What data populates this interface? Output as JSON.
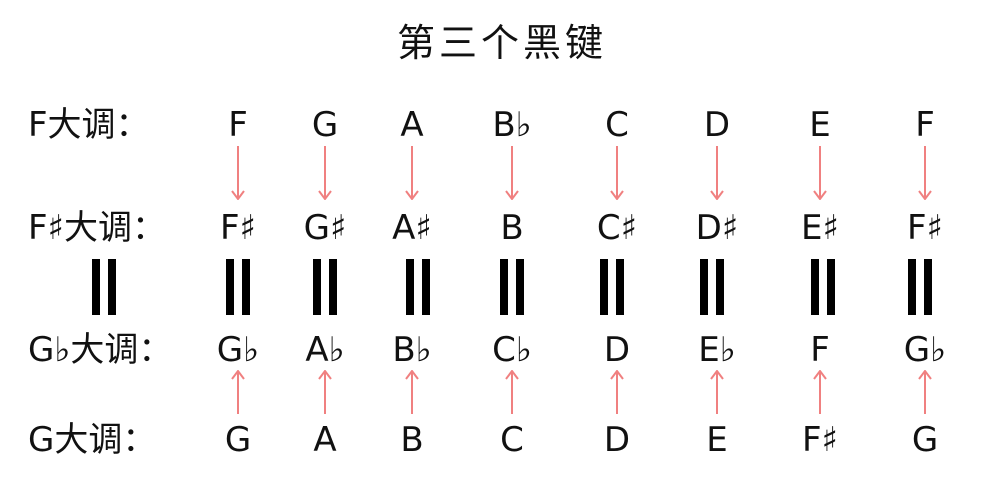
{
  "title": "第三个黑键",
  "rows": [
    {
      "label": "F大调：",
      "notes": [
        "F",
        "G",
        "A",
        "B♭",
        "C",
        "D",
        "E",
        "F"
      ]
    },
    {
      "label": "F♯大调：",
      "notes": [
        "F♯",
        "G♯",
        "A♯",
        "B",
        "C♯",
        "D♯",
        "E♯",
        "F♯"
      ]
    },
    {
      "label": "G♭大调：",
      "notes": [
        "G♭",
        "A♭",
        "B♭",
        "C♭",
        "D",
        "E♭",
        "F",
        "G♭"
      ]
    },
    {
      "label": "G大调：",
      "notes": [
        "G",
        "A",
        "B",
        "C",
        "D",
        "E",
        "F♯",
        "G"
      ]
    }
  ],
  "colors": {
    "arrow": "#f08080",
    "equals": "#000000",
    "text": "#111111"
  },
  "icons": {
    "arrow_down": "arrow-down-icon",
    "arrow_up": "arrow-up-icon",
    "equals": "double-bar-icon"
  }
}
